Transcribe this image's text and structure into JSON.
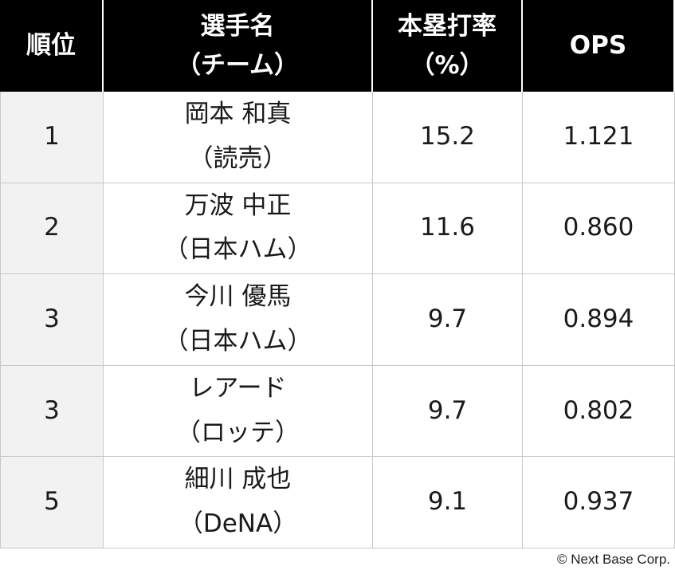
{
  "table": {
    "headers": [
      {
        "line1": "順位",
        "line2": ""
      },
      {
        "line1": "選手名",
        "line2": "（チーム）"
      },
      {
        "line1": "本塁打率",
        "line2": "（%）"
      },
      {
        "line1": "OPS",
        "line2": ""
      }
    ],
    "rows": [
      {
        "rank": "1",
        "name": "岡本 和真",
        "team": "（読売）",
        "hr_rate": "15.2",
        "ops": "1.121"
      },
      {
        "rank": "2",
        "name": "万波 中正",
        "team": "（日本ハム）",
        "hr_rate": "11.6",
        "ops": "0.860"
      },
      {
        "rank": "3",
        "name": "今川 優馬",
        "team": "（日本ハム）",
        "hr_rate": "9.7",
        "ops": "0.894"
      },
      {
        "rank": "3",
        "name": "レアード",
        "team": "（ロッテ）",
        "hr_rate": "9.7",
        "ops": "0.802"
      },
      {
        "rank": "5",
        "name": "細川 成也",
        "team": "（DeNA）",
        "hr_rate": "9.1",
        "ops": "0.937"
      }
    ]
  },
  "footer": {
    "copyright": "© Next Base Corp."
  }
}
